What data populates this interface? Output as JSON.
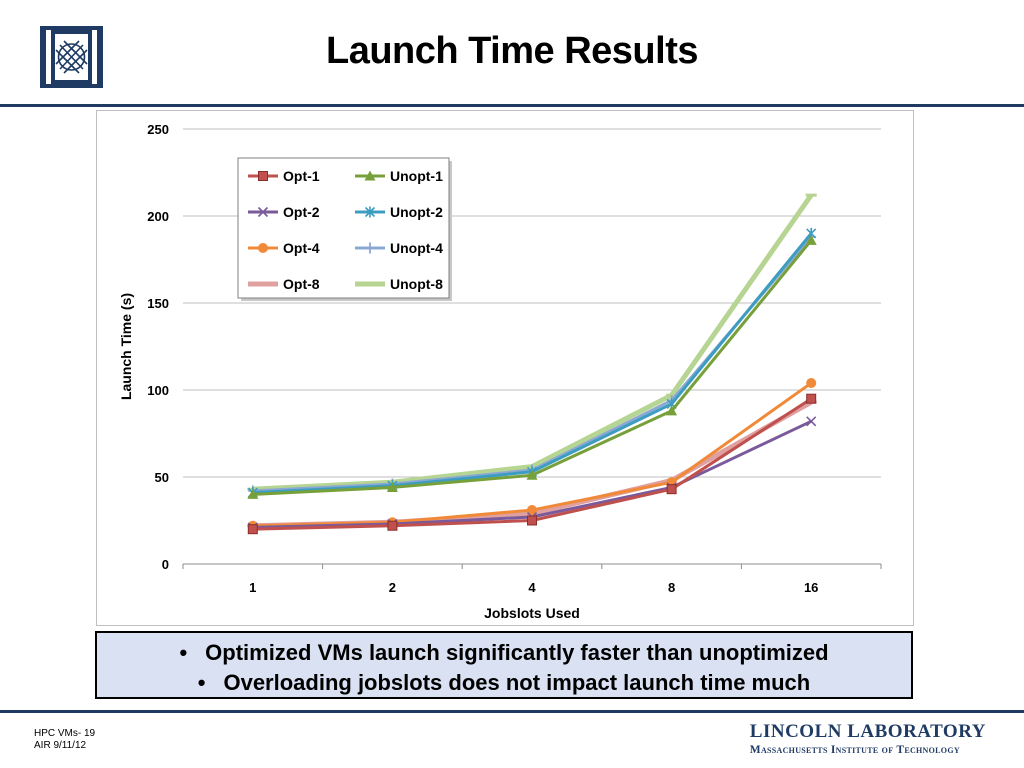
{
  "slide": {
    "title": "Launch Time Results",
    "bullets": [
      "Optimized VMs launch significantly faster than unoptimized",
      "Overloading jobslots does not impact launch time much"
    ],
    "bullet_glyph": "•",
    "footer": {
      "line1": "HPC VMs- 19",
      "line2": "AIR 9/11/12"
    },
    "brand": {
      "name": "LINCOLN LABORATORY",
      "subtitle": "Massachusetts Institute of Technology",
      "color": "#1f3a63"
    },
    "logo_icon": "lincoln-lab-logo"
  },
  "chart_data": {
    "type": "line",
    "categories": [
      "1",
      "2",
      "4",
      "8",
      "16"
    ],
    "xlabel": "Jobslots Used",
    "ylabel": "Launch Time (s)",
    "ylim": [
      0,
      250
    ],
    "yticks": [
      0,
      50,
      100,
      150,
      200,
      250
    ],
    "grid": true,
    "legend_position": "top-left",
    "series": [
      {
        "name": "Opt-1",
        "color": "#c0504d",
        "marker": "square",
        "values": [
          20,
          22,
          25,
          43,
          95
        ]
      },
      {
        "name": "Unopt-1",
        "color": "#77a03a",
        "marker": "triangle",
        "values": [
          40,
          44,
          51,
          88,
          186
        ]
      },
      {
        "name": "Opt-2",
        "color": "#7a5a9a",
        "marker": "x",
        "values": [
          21,
          23,
          27,
          44,
          82
        ]
      },
      {
        "name": "Unopt-2",
        "color": "#3d9dc0",
        "marker": "star",
        "values": [
          41,
          45,
          53,
          92,
          190
        ]
      },
      {
        "name": "Opt-4",
        "color": "#f18a38",
        "marker": "circle",
        "values": [
          22,
          24,
          31,
          47,
          104
        ]
      },
      {
        "name": "Unopt-4",
        "color": "#8aa8d4",
        "marker": "plus",
        "values": [
          42,
          46,
          54,
          94,
          188
        ]
      },
      {
        "name": "Opt-8",
        "color": "#e0a0a0",
        "marker": "dash",
        "values": [
          22,
          24,
          29,
          48,
          93
        ]
      },
      {
        "name": "Unopt-8",
        "color": "#b6d492",
        "marker": "dash",
        "values": [
          43,
          47,
          56,
          97,
          212
        ]
      }
    ]
  }
}
